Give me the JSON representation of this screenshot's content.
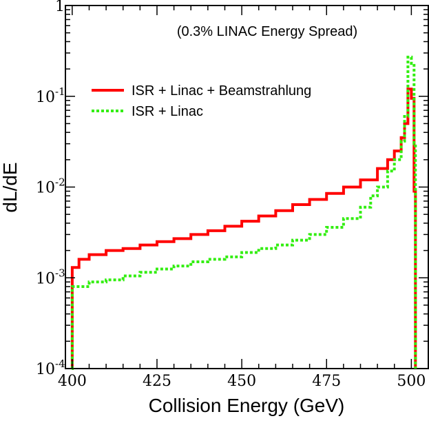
{
  "chart_data": {
    "type": "line",
    "style": "step histogram",
    "xlabel": "Collision Energy (GeV)",
    "ylabel": "dL/dE",
    "annotation": "(0.3% LINAC Energy Spread)",
    "xlim": [
      398,
      505
    ],
    "ylim": [
      0.0001,
      1
    ],
    "yscale": "log",
    "x_ticks": [
      "400",
      "425",
      "450",
      "475",
      "500"
    ],
    "x_tick_values": [
      400,
      425,
      450,
      475,
      500
    ],
    "y_ticks": [
      {
        "value": 0.0001,
        "base": "10",
        "exp": "-4"
      },
      {
        "value": 0.001,
        "base": "10",
        "exp": "-3"
      },
      {
        "value": 0.01,
        "base": "10",
        "exp": "-2"
      },
      {
        "value": 0.1,
        "base": "10",
        "exp": "-1"
      },
      {
        "value": 1,
        "base": "1",
        "exp": ""
      }
    ],
    "grid": false,
    "legend_position": "top-left",
    "series": [
      {
        "name": "ISR + Linac + Beamstrahlung",
        "color": "#ff0000",
        "dash": "solid",
        "points": [
          [
            399.9,
            0.0001
          ],
          [
            400.0,
            0.0013
          ],
          [
            402,
            0.0016
          ],
          [
            405,
            0.0018
          ],
          [
            410,
            0.002
          ],
          [
            415,
            0.0021
          ],
          [
            420,
            0.0023
          ],
          [
            425,
            0.0025
          ],
          [
            430,
            0.0027
          ],
          [
            435,
            0.003
          ],
          [
            440,
            0.0033
          ],
          [
            445,
            0.0037
          ],
          [
            450,
            0.0042
          ],
          [
            455,
            0.0048
          ],
          [
            460,
            0.0055
          ],
          [
            465,
            0.0064
          ],
          [
            470,
            0.0073
          ],
          [
            475,
            0.0085
          ],
          [
            480,
            0.01
          ],
          [
            485,
            0.012
          ],
          [
            490,
            0.016
          ],
          [
            493,
            0.02
          ],
          [
            495,
            0.025
          ],
          [
            497,
            0.035
          ],
          [
            498,
            0.05
          ],
          [
            499,
            0.12
          ],
          [
            500,
            0.095
          ],
          [
            500.8,
            0.009
          ],
          [
            501.2,
            0.0001
          ]
        ]
      },
      {
        "name": "ISR + Linac",
        "color": "#33ee11",
        "dash": "dotted",
        "points": [
          [
            399.9,
            0.0001
          ],
          [
            400.0,
            0.0008
          ],
          [
            405,
            0.0009
          ],
          [
            410,
            0.00095
          ],
          [
            415,
            0.00105
          ],
          [
            420,
            0.00115
          ],
          [
            425,
            0.00125
          ],
          [
            430,
            0.00135
          ],
          [
            435,
            0.0015
          ],
          [
            440,
            0.0016
          ],
          [
            445,
            0.0017
          ],
          [
            450,
            0.0019
          ],
          [
            455,
            0.0021
          ],
          [
            460,
            0.0023
          ],
          [
            465,
            0.0026
          ],
          [
            470,
            0.003
          ],
          [
            475,
            0.0036
          ],
          [
            480,
            0.0045
          ],
          [
            485,
            0.006
          ],
          [
            488,
            0.008
          ],
          [
            490,
            0.01
          ],
          [
            493,
            0.015
          ],
          [
            495,
            0.02
          ],
          [
            497,
            0.032
          ],
          [
            498,
            0.06
          ],
          [
            499,
            0.27
          ],
          [
            500,
            0.23
          ],
          [
            500.8,
            0.03
          ],
          [
            501.2,
            0.0001
          ]
        ]
      }
    ]
  }
}
